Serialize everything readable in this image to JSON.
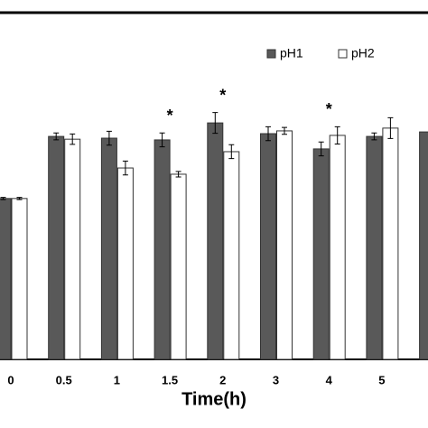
{
  "chart_data": {
    "type": "bar",
    "categories": [
      "0",
      "0.5",
      "1",
      "1.5",
      "2",
      "3",
      "4",
      "5",
      null
    ],
    "series": [
      {
        "name": "pH1",
        "color": "#595959",
        "values": [
          46.4,
          64.3,
          63.8,
          63.3,
          68.2,
          65.1,
          60.7,
          64.3,
          65.6
        ],
        "errors": [
          0.3,
          1.0,
          2.0,
          2.0,
          3.0,
          2.0,
          2.0,
          1.0,
          null
        ]
      },
      {
        "name": "pH2",
        "color": "#ffffff",
        "values": [
          46.4,
          63.5,
          55.2,
          53.4,
          59.9,
          65.9,
          64.6,
          66.7,
          null
        ],
        "errors": [
          0.3,
          1.5,
          2.0,
          0.8,
          2.0,
          1.0,
          2.5,
          3.0,
          null
        ]
      }
    ],
    "annotations": [
      null,
      null,
      null,
      "*",
      "*",
      null,
      "*",
      null,
      null
    ],
    "x_label": "Time(h)",
    "ylim": [
      0,
      100
    ],
    "legend": "top-right"
  }
}
